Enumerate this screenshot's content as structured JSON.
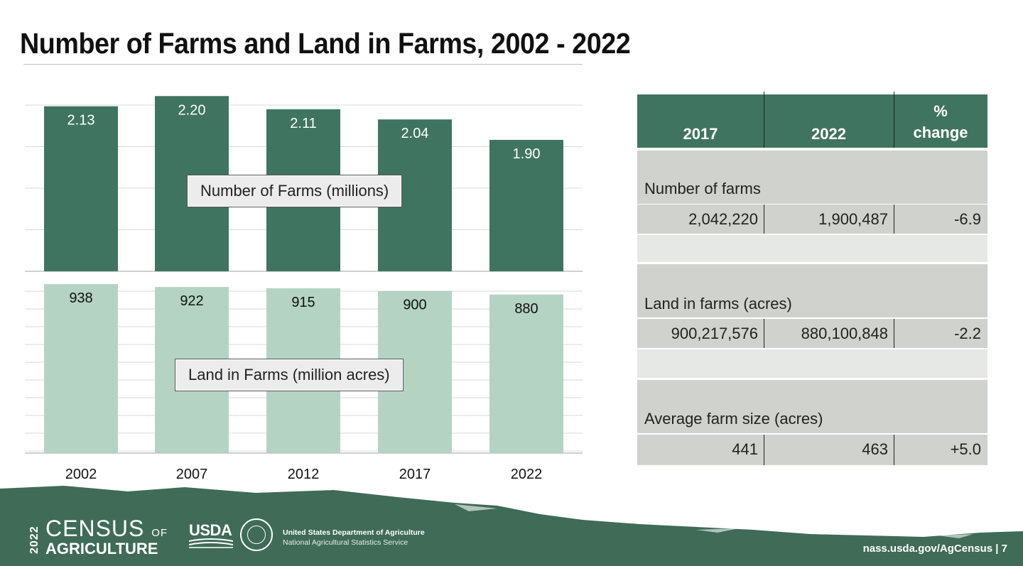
{
  "title": "Number of Farms and Land in Farms, 2002 - 2022",
  "chart_data": [
    {
      "type": "bar",
      "title": "Number of Farms (millions)",
      "categories": [
        "2002",
        "2007",
        "2012",
        "2017",
        "2022"
      ],
      "values": [
        2.13,
        2.2,
        2.11,
        2.04,
        1.9
      ],
      "value_labels": [
        "2.13",
        "2.20",
        "2.11",
        "2.04",
        "1.90"
      ],
      "ylim": [
        1.0,
        2.25
      ],
      "color": "#3f7460",
      "label_color": "#ffffff",
      "grid": true
    },
    {
      "type": "bar",
      "title": "Land in Farms (million acres)",
      "categories": [
        "2002",
        "2007",
        "2012",
        "2017",
        "2022"
      ],
      "values": [
        938,
        922,
        915,
        900,
        880
      ],
      "value_labels": [
        "938",
        "922",
        "915",
        "900",
        "880"
      ],
      "ylim": [
        0,
        950
      ],
      "color": "#b5d3c3",
      "label_color": "#111111",
      "grid": true
    }
  ],
  "table": {
    "headers": {
      "c2017": "2017",
      "c2022": "2022",
      "change_line1": "%",
      "change_line2": "change"
    },
    "rows": [
      {
        "label": "Number of farms",
        "v2017": "2,042,220",
        "v2022": "1,900,487",
        "change": "-6.9"
      },
      {
        "label": "Land in farms (acres)",
        "v2017": "900,217,576",
        "v2022": "880,100,848",
        "change": "-2.2"
      },
      {
        "label": "Average farm size (acres)",
        "v2017": "441",
        "v2022": "463",
        "change": "+5.0"
      }
    ],
    "header_color": "#3f7460"
  },
  "footer": {
    "census_year": "2022",
    "census_word": "CENSUS",
    "census_of": "OF",
    "census_agri": "AGRICULTURE",
    "usda": "USDA",
    "department": "United States Department of Agriculture",
    "service": "National Agricultural Statistics Service",
    "url": "nass.usda.gov/AgCensus  |  7",
    "color": "#3f6b57"
  }
}
